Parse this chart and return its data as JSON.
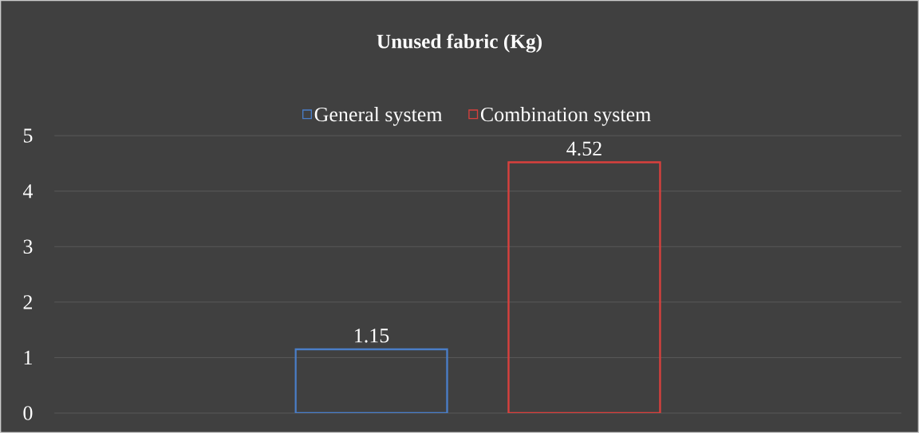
{
  "chart_data": {
    "type": "bar",
    "title": "Unused fabric (Kg)",
    "categories": [
      null
    ],
    "series": [
      {
        "name": "General system",
        "color": "#4a7ec8",
        "values": [
          1.15
        ]
      },
      {
        "name": "Combination system",
        "color": "#d9403d",
        "values": [
          4.52
        ]
      }
    ],
    "ylim": [
      0,
      5
    ],
    "yticks": [
      0,
      1,
      2,
      3,
      4,
      5
    ],
    "grid": "y",
    "legend": "top",
    "data_labels": true
  }
}
